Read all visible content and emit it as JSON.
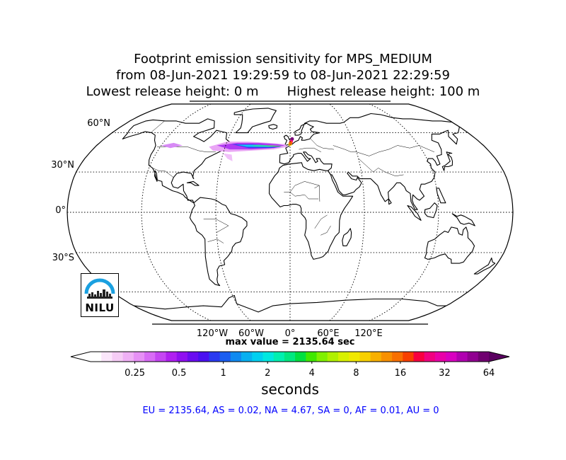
{
  "chart_data": {
    "type": "heatmap",
    "title_lines": [
      "Footprint emission sensitivity for MPS_MEDIUM",
      "from 08-Jun-2021 19:29:59 to 08-Jun-2021 22:29:59",
      "Lowest release height: 0 m       Highest release height: 100 m"
    ],
    "projection": "Robinson",
    "lat_labels": [
      "60°N",
      "30°N",
      "0°",
      "30°S"
    ],
    "lon_labels": [
      "120°W",
      "60°W",
      "0°",
      "60°E",
      "120°E"
    ],
    "max_value_text": "max value = 2135.64 sec",
    "colorbar": {
      "unit": "seconds",
      "ticks": [
        "0.25",
        "0.5",
        "1",
        "2",
        "4",
        "8",
        "16",
        "32",
        "64"
      ],
      "scale": "log2",
      "range": [
        0.125,
        64
      ]
    },
    "regions_text": "EU = 2135.64,  AS = 0.02,  NA = 4.67,  SA = 0,  AF = 0.01,  AU = 0",
    "regions": [
      {
        "name": "EU",
        "value": 2135.64
      },
      {
        "name": "AS",
        "value": 0.02
      },
      {
        "name": "NA",
        "value": 4.67
      },
      {
        "name": "SA",
        "value": 0
      },
      {
        "name": "AF",
        "value": 0.01
      },
      {
        "name": "AU",
        "value": 0
      }
    ],
    "logo_text": "NILU"
  }
}
